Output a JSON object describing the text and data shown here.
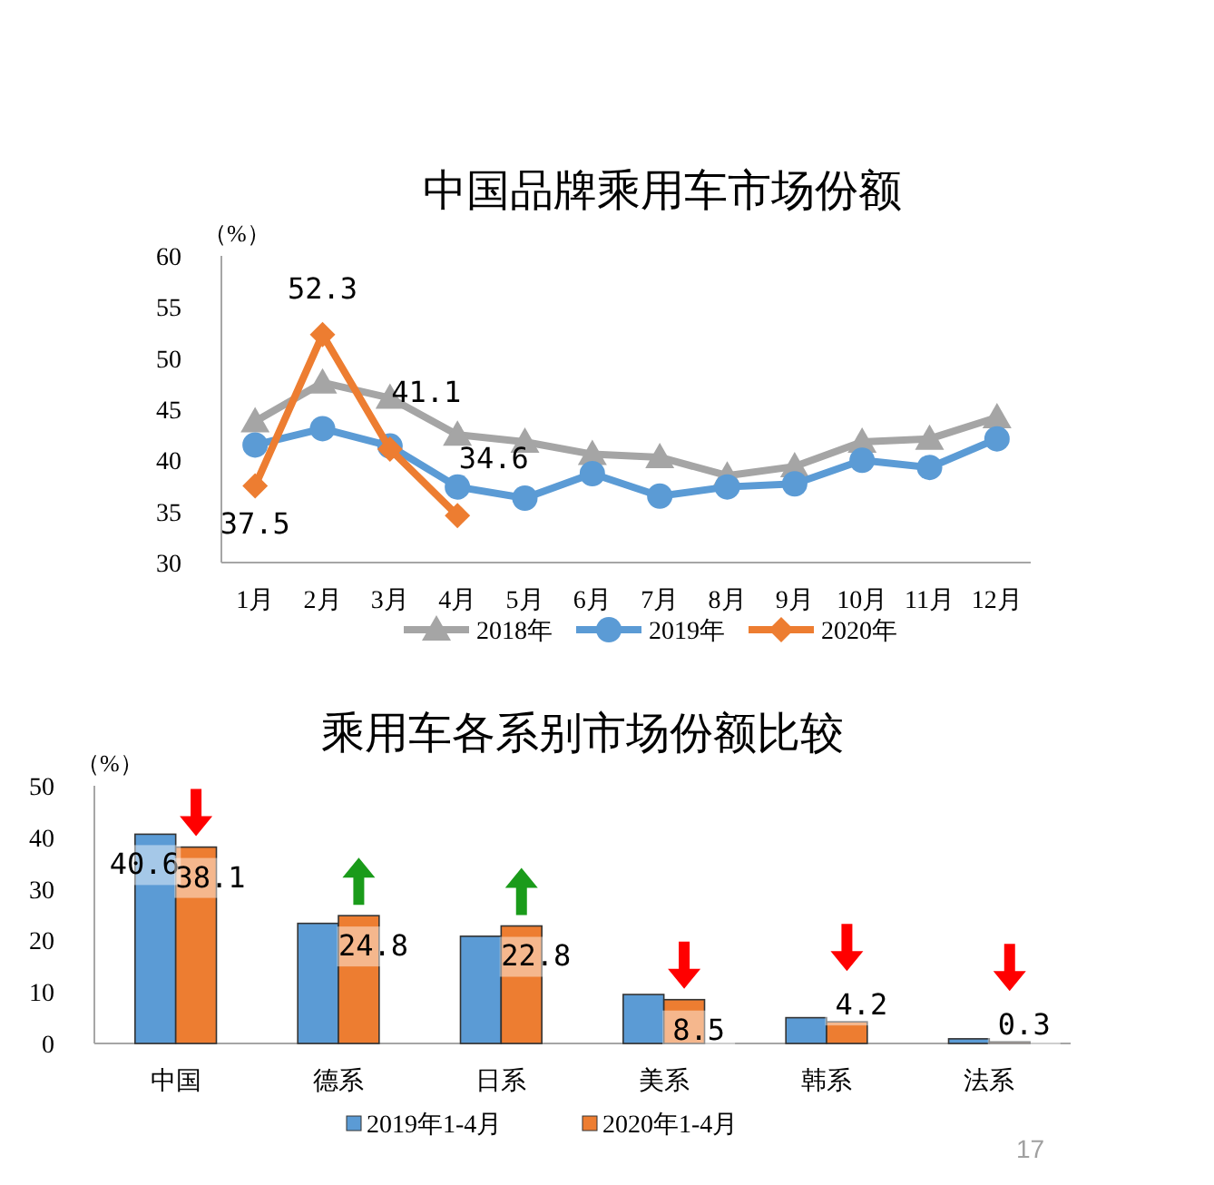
{
  "chart_data": [
    {
      "type": "line",
      "title": "中国品牌乘用车市场份额",
      "ylabel": "（%）",
      "categories": [
        "1月",
        "2月",
        "3月",
        "4月",
        "5月",
        "6月",
        "7月",
        "8月",
        "9月",
        "10月",
        "11月",
        "12月"
      ],
      "series": [
        {
          "name": "2018年",
          "color": "#a5a5a5",
          "marker": "triangle",
          "values": [
            43.8,
            47.6,
            46.1,
            42.5,
            41.8,
            40.6,
            40.3,
            38.5,
            39.4,
            41.8,
            42.1,
            44.2
          ]
        },
        {
          "name": "2019年",
          "color": "#5b9bd5",
          "marker": "circle",
          "values": [
            41.5,
            43.1,
            41.4,
            37.4,
            36.3,
            38.7,
            36.5,
            37.4,
            37.7,
            40.0,
            39.3,
            42.1
          ]
        },
        {
          "name": "2020年",
          "color": "#ed7d31",
          "marker": "diamond",
          "values": [
            37.5,
            52.3,
            41.1,
            34.6,
            null,
            null,
            null,
            null,
            null,
            null,
            null,
            null
          ],
          "value_labels": [
            "37.5",
            "52.3",
            "41.1",
            "34.6",
            null,
            null,
            null,
            null,
            null,
            null,
            null,
            null
          ]
        }
      ],
      "ylim": [
        30,
        60
      ],
      "yticks": [
        30,
        35,
        40,
        45,
        50,
        55,
        60
      ],
      "grid": false,
      "legend": "bottom"
    },
    {
      "type": "bar",
      "title": "乘用车各系别市场份额比较",
      "ylabel": "（%）",
      "categories": [
        "中国",
        "德系",
        "日系",
        "美系",
        "韩系",
        "法系"
      ],
      "series": [
        {
          "name": "2019年1-4月",
          "color": "#5b9bd5",
          "values": [
            40.6,
            23.3,
            20.8,
            9.5,
            5.0,
            0.9
          ],
          "value_labels": [
            "40.6",
            null,
            null,
            null,
            null,
            null
          ]
        },
        {
          "name": "2020年1-4月",
          "color": "#ed7d31",
          "values": [
            38.1,
            24.8,
            22.8,
            8.5,
            4.2,
            0.3
          ],
          "value_labels": [
            "38.1",
            "24.8",
            "22.8",
            "8.5",
            "4.2",
            "0.3"
          ]
        }
      ],
      "ylim": [
        0,
        50
      ],
      "yticks": [
        0,
        10,
        20,
        30,
        40,
        50
      ],
      "grid": false,
      "legend": "bottom",
      "annotations": [
        "17"
      ]
    }
  ]
}
